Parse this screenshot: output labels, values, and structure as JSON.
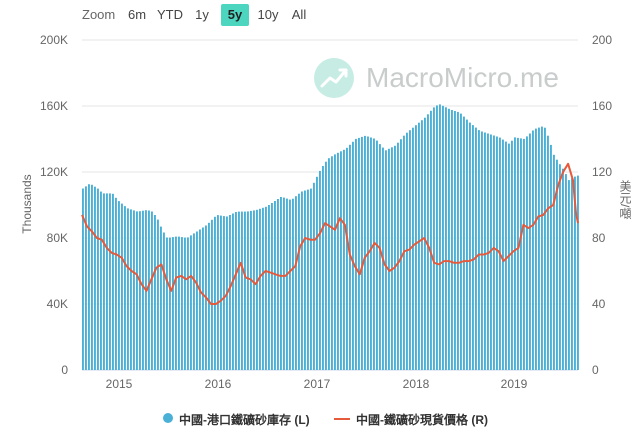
{
  "zoom": {
    "label": "Zoom",
    "buttons": [
      "6m",
      "YTD",
      "1y",
      "5y",
      "10y",
      "All"
    ],
    "active": "5y"
  },
  "watermark": {
    "text": "MacroMicro.me",
    "icon": "trend-chart-icon"
  },
  "axes": {
    "left_title": "Thousands",
    "right_title": "美元/噸",
    "left_ticks": [
      "0",
      "40K",
      "80K",
      "120K",
      "160K",
      "200K"
    ],
    "right_ticks": [
      "0",
      "40",
      "80",
      "120",
      "160",
      "200"
    ],
    "x_ticks": [
      "2015",
      "2016",
      "2017",
      "2018",
      "2019"
    ]
  },
  "legend": {
    "left_series": "中國-港口鐵礦砂庫存 (L)",
    "right_series": "中國-鐵礦砂現貨價格 (R)"
  },
  "colors": {
    "bars": "#4ab0d6",
    "line": "#e65a3c",
    "active_zoom": "#4cd6c0",
    "grid": "#e6e6e6"
  },
  "chart_data": {
    "type": "bar",
    "x_range": [
      2014.65,
      2019.65
    ],
    "grid": true,
    "legend_position": "bottom",
    "series": [
      {
        "name": "中國-港口鐵礦砂庫存 (L)",
        "axis": "left",
        "type": "bar",
        "unit": "Thousands",
        "ylim": [
          0,
          200000
        ],
        "points": [
          [
            2014.65,
            110000
          ],
          [
            2014.72,
            113000
          ],
          [
            2014.8,
            110000
          ],
          [
            2014.85,
            107000
          ],
          [
            2014.95,
            107000
          ],
          [
            2015.0,
            103000
          ],
          [
            2015.1,
            98000
          ],
          [
            2015.2,
            96000
          ],
          [
            2015.3,
            97000
          ],
          [
            2015.35,
            96000
          ],
          [
            2015.4,
            92000
          ],
          [
            2015.45,
            85000
          ],
          [
            2015.5,
            80000
          ],
          [
            2015.6,
            81000
          ],
          [
            2015.7,
            80000
          ],
          [
            2015.8,
            84000
          ],
          [
            2015.9,
            88000
          ],
          [
            2016.0,
            94000
          ],
          [
            2016.1,
            93000
          ],
          [
            2016.2,
            96000
          ],
          [
            2016.3,
            96000
          ],
          [
            2016.4,
            97000
          ],
          [
            2016.5,
            99000
          ],
          [
            2016.6,
            103000
          ],
          [
            2016.65,
            105000
          ],
          [
            2016.75,
            103000
          ],
          [
            2016.85,
            108000
          ],
          [
            2016.95,
            110000
          ],
          [
            2017.05,
            122000
          ],
          [
            2017.12,
            128000
          ],
          [
            2017.2,
            131000
          ],
          [
            2017.3,
            134000
          ],
          [
            2017.4,
            140000
          ],
          [
            2017.5,
            142000
          ],
          [
            2017.6,
            140000
          ],
          [
            2017.7,
            133000
          ],
          [
            2017.8,
            136000
          ],
          [
            2017.9,
            143000
          ],
          [
            2018.0,
            148000
          ],
          [
            2018.1,
            153000
          ],
          [
            2018.2,
            160000
          ],
          [
            2018.25,
            161000
          ],
          [
            2018.35,
            158000
          ],
          [
            2018.45,
            156000
          ],
          [
            2018.55,
            150000
          ],
          [
            2018.65,
            145000
          ],
          [
            2018.75,
            143000
          ],
          [
            2018.85,
            141000
          ],
          [
            2018.95,
            137000
          ],
          [
            2019.0,
            141000
          ],
          [
            2019.1,
            140000
          ],
          [
            2019.2,
            146000
          ],
          [
            2019.3,
            148000
          ],
          [
            2019.35,
            140000
          ],
          [
            2019.4,
            130000
          ],
          [
            2019.5,
            121000
          ],
          [
            2019.55,
            115000
          ],
          [
            2019.6,
            117000
          ],
          [
            2019.65,
            118000
          ]
        ]
      },
      {
        "name": "中國-鐵礦砂現貨價格 (R)",
        "axis": "right",
        "type": "line",
        "unit": "美元/噸",
        "ylim": [
          0,
          200
        ],
        "points": [
          [
            2014.65,
            94
          ],
          [
            2014.7,
            87
          ],
          [
            2014.75,
            84
          ],
          [
            2014.8,
            80
          ],
          [
            2014.85,
            79
          ],
          [
            2014.9,
            74
          ],
          [
            2014.95,
            71
          ],
          [
            2015.0,
            70
          ],
          [
            2015.05,
            68
          ],
          [
            2015.1,
            63
          ],
          [
            2015.15,
            60
          ],
          [
            2015.2,
            58
          ],
          [
            2015.25,
            52
          ],
          [
            2015.3,
            48
          ],
          [
            2015.35,
            55
          ],
          [
            2015.4,
            62
          ],
          [
            2015.45,
            64
          ],
          [
            2015.5,
            55
          ],
          [
            2015.55,
            48
          ],
          [
            2015.6,
            56
          ],
          [
            2015.65,
            57
          ],
          [
            2015.7,
            55
          ],
          [
            2015.75,
            57
          ],
          [
            2015.8,
            53
          ],
          [
            2015.85,
            47
          ],
          [
            2015.9,
            44
          ],
          [
            2015.95,
            40
          ],
          [
            2016.0,
            40
          ],
          [
            2016.05,
            42
          ],
          [
            2016.1,
            45
          ],
          [
            2016.15,
            51
          ],
          [
            2016.2,
            58
          ],
          [
            2016.25,
            65
          ],
          [
            2016.3,
            56
          ],
          [
            2016.35,
            55
          ],
          [
            2016.4,
            52
          ],
          [
            2016.45,
            57
          ],
          [
            2016.5,
            60
          ],
          [
            2016.55,
            59
          ],
          [
            2016.6,
            58
          ],
          [
            2016.65,
            57
          ],
          [
            2016.7,
            57
          ],
          [
            2016.75,
            60
          ],
          [
            2016.8,
            63
          ],
          [
            2016.85,
            75
          ],
          [
            2016.9,
            80
          ],
          [
            2016.95,
            79
          ],
          [
            2017.0,
            79
          ],
          [
            2017.05,
            83
          ],
          [
            2017.1,
            89
          ],
          [
            2017.15,
            87
          ],
          [
            2017.2,
            85
          ],
          [
            2017.25,
            92
          ],
          [
            2017.3,
            88
          ],
          [
            2017.35,
            70
          ],
          [
            2017.4,
            63
          ],
          [
            2017.45,
            58
          ],
          [
            2017.5,
            68
          ],
          [
            2017.55,
            72
          ],
          [
            2017.6,
            77
          ],
          [
            2017.65,
            74
          ],
          [
            2017.7,
            64
          ],
          [
            2017.75,
            60
          ],
          [
            2017.8,
            62
          ],
          [
            2017.85,
            66
          ],
          [
            2017.9,
            72
          ],
          [
            2017.95,
            73
          ],
          [
            2018.0,
            76
          ],
          [
            2018.05,
            78
          ],
          [
            2018.1,
            80
          ],
          [
            2018.15,
            74
          ],
          [
            2018.2,
            65
          ],
          [
            2018.25,
            64
          ],
          [
            2018.3,
            66
          ],
          [
            2018.35,
            66
          ],
          [
            2018.4,
            65
          ],
          [
            2018.45,
            65
          ],
          [
            2018.5,
            66
          ],
          [
            2018.55,
            66
          ],
          [
            2018.6,
            67
          ],
          [
            2018.65,
            70
          ],
          [
            2018.7,
            70
          ],
          [
            2018.75,
            71
          ],
          [
            2018.8,
            74
          ],
          [
            2018.85,
            72
          ],
          [
            2018.9,
            66
          ],
          [
            2018.95,
            69
          ],
          [
            2019.0,
            72
          ],
          [
            2019.05,
            74
          ],
          [
            2019.1,
            88
          ],
          [
            2019.15,
            86
          ],
          [
            2019.2,
            88
          ],
          [
            2019.25,
            93
          ],
          [
            2019.3,
            94
          ],
          [
            2019.35,
            98
          ],
          [
            2019.4,
            100
          ],
          [
            2019.45,
            112
          ],
          [
            2019.5,
            120
          ],
          [
            2019.55,
            125
          ],
          [
            2019.6,
            115
          ],
          [
            2019.63,
            95
          ],
          [
            2019.65,
            89
          ]
        ]
      }
    ]
  }
}
